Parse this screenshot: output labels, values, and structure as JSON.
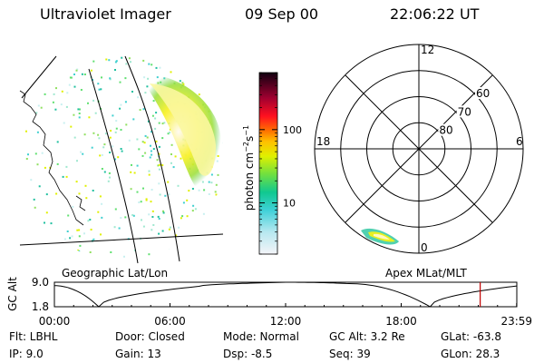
{
  "header": {
    "instrument": "Ultraviolet Imager",
    "date": "09 Sep 00",
    "time": "22:06:22 UT"
  },
  "panels": {
    "left_label": "Geographic Lat/Lon",
    "right_label": "Apex MLat/MLT"
  },
  "chart_data": [
    {
      "type": "heatmap",
      "title": "",
      "projection": "Geographic Lat/Lon",
      "description_colors": [
        "#f0f0ff",
        "#60e0e0",
        "#10c0b0",
        "#70e050",
        "#e8f000",
        "#ffa000",
        "#ff2000",
        "#a00020",
        "#200010"
      ]
    },
    {
      "type": "colorbar",
      "label": "photon cm⁻²s⁻¹",
      "scale": "log",
      "tick_labels": [
        "10",
        "100"
      ],
      "tick_values": [
        10,
        100
      ],
      "range": [
        2,
        600
      ]
    },
    {
      "type": "polar",
      "mlt_labels": [
        "12",
        "18",
        "6",
        "0"
      ],
      "mlat_labels": [
        "60",
        "70",
        "80"
      ],
      "mlat_rings": [
        60,
        70,
        80
      ]
    },
    {
      "type": "line",
      "ylabel": "GC Alt",
      "y_ticks": [
        "9.0",
        "1.8"
      ],
      "ylim": [
        1.8,
        9.0
      ],
      "x_ticks": [
        "00:00",
        "06:00",
        "12:00",
        "18:00",
        "23:59"
      ],
      "x_hours": [
        0,
        2.3,
        7.5,
        12,
        15.3,
        19.5,
        23.99
      ],
      "y": [
        8.0,
        1.8,
        7.8,
        9.0,
        8.6,
        1.8,
        7.9
      ],
      "current_time_hour": 22.1,
      "marker_color": "#c00000"
    }
  ],
  "footer": {
    "flt": "Flt: LBHL",
    "ip": "IP:  9.0",
    "door": "Door: Closed",
    "gain": "Gain: 13",
    "mode": "Mode: Normal",
    "dsp": "Dsp:    -8.5",
    "gcalt": "GC Alt: 3.2 Re",
    "seq": "Seq: 39",
    "glat": "GLat:   -63.8",
    "glon": "GLon:   28.3"
  }
}
